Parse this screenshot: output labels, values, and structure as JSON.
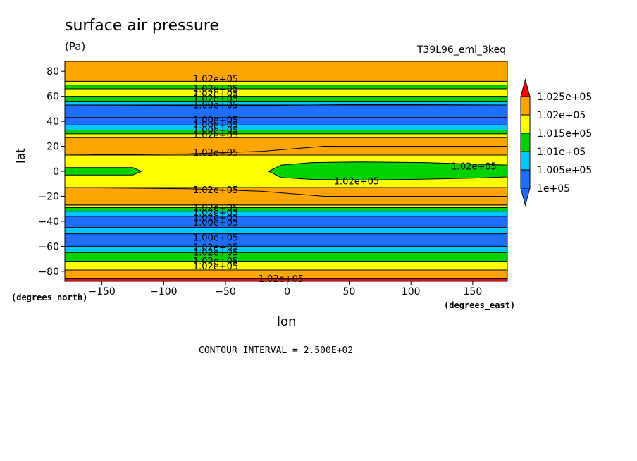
{
  "plot": {
    "title": "surface air pressure",
    "units": "(Pa)",
    "dataset": "T39L96_eml_3keq",
    "contour_interval": "CONTOUR INTERVAL = 2.500E+02"
  },
  "colors": {
    "lt_100000": "#1e6eff",
    "100000_100500": "#00c8ff",
    "100500_101000": "#00d200",
    "101000_101500": "#ffff00",
    "101500_102000": "#ffa500",
    "102000_102500": "#ff0000",
    "gt_102500": "#ff0000",
    "contour_line": "#000000"
  },
  "chart_data": {
    "type": "heatmap",
    "title": "surface air pressure",
    "units": "(Pa)",
    "xlabel": "lon",
    "ylabel": "lat",
    "x_units_label": "(degrees_east)",
    "y_units_label": "(degrees_north)",
    "xlim": [
      -180,
      178
    ],
    "ylim": [
      -88,
      88
    ],
    "x_ticks": [
      -150,
      -100,
      -50,
      0,
      50,
      100,
      150
    ],
    "y_ticks": [
      -80,
      -60,
      -40,
      -20,
      0,
      20,
      40,
      60,
      80
    ],
    "colorbar": {
      "labels": [
        "1.025e+05",
        "1.02e+05",
        "1.015e+05",
        "1.01e+05",
        "1.005e+05",
        "1e+05"
      ]
    },
    "bands": [
      {
        "lat_from": -88,
        "lat_to": -86,
        "class": "102000_102500"
      },
      {
        "lat_from": -86,
        "lat_to": -79,
        "class": "101500_102000"
      },
      {
        "lat_from": -79,
        "lat_to": -72,
        "class": "101000_101500"
      },
      {
        "lat_from": -72,
        "lat_to": -65,
        "class": "100500_101000"
      },
      {
        "lat_from": -65,
        "lat_to": -60,
        "class": "100000_100500"
      },
      {
        "lat_from": -60,
        "lat_to": -50,
        "class": "lt_100000"
      },
      {
        "lat_from": -50,
        "lat_to": -45,
        "class": "100000_100500"
      },
      {
        "lat_from": -45,
        "lat_to": -36,
        "class": "lt_100000"
      },
      {
        "lat_from": -36,
        "lat_to": -32,
        "class": "100000_100500"
      },
      {
        "lat_from": -32,
        "lat_to": -29,
        "class": "100500_101000"
      },
      {
        "lat_from": -29,
        "lat_to": -27,
        "class": "101000_101500"
      },
      {
        "lat_from": -27,
        "lat_to": -13,
        "class": "101500_102000"
      },
      {
        "lat_from": -13,
        "lat_to": 13,
        "class": "101000_101500"
      },
      {
        "lat_from": 13,
        "lat_to": 27,
        "class": "101500_102000"
      },
      {
        "lat_from": 27,
        "lat_to": 30,
        "class": "101000_101500"
      },
      {
        "lat_from": 30,
        "lat_to": 33,
        "class": "100500_101000"
      },
      {
        "lat_from": 33,
        "lat_to": 37,
        "class": "100000_100500"
      },
      {
        "lat_from": 37,
        "lat_to": 43,
        "class": "lt_100000"
      },
      {
        "lat_from": 43,
        "lat_to": 53,
        "class": "lt_100000"
      },
      {
        "lat_from": 53,
        "lat_to": 56,
        "class": "100000_100500"
      },
      {
        "lat_from": 56,
        "lat_to": 60,
        "class": "100500_101000"
      },
      {
        "lat_from": 60,
        "lat_to": 66,
        "class": "101000_101500"
      },
      {
        "lat_from": 66,
        "lat_to": 69,
        "class": "100500_101000"
      },
      {
        "lat_from": 69,
        "lat_to": 72,
        "class": "101000_101500"
      },
      {
        "lat_from": 72,
        "lat_to": 88,
        "class": "101500_102000"
      }
    ],
    "regions": [
      {
        "class": "100500_101000",
        "points": [
          [
            -180,
            3
          ],
          [
            -125,
            3
          ],
          [
            -118,
            0
          ],
          [
            -125,
            -3
          ],
          [
            -180,
            -3
          ]
        ]
      },
      {
        "class": "100500_101000",
        "points": [
          [
            -15,
            0
          ],
          [
            -5,
            5
          ],
          [
            20,
            7
          ],
          [
            60,
            7.5
          ],
          [
            110,
            7
          ],
          [
            160,
            5.5
          ],
          [
            178,
            5
          ],
          [
            178,
            -4.5
          ],
          [
            150,
            -5.5
          ],
          [
            100,
            -6.5
          ],
          [
            60,
            -7
          ],
          [
            20,
            -6.5
          ],
          [
            -5,
            -5
          ]
        ]
      },
      {
        "class": "101500_102000",
        "points": [
          [
            -180,
            13
          ],
          [
            -80,
            14
          ],
          [
            -20,
            16
          ],
          [
            30,
            20
          ],
          [
            178,
            20
          ],
          [
            178,
            27
          ],
          [
            -180,
            27
          ]
        ]
      },
      {
        "class": "101500_102000",
        "points": [
          [
            -180,
            -13
          ],
          [
            -80,
            -14
          ],
          [
            -20,
            -16
          ],
          [
            30,
            -20
          ],
          [
            178,
            -20
          ],
          [
            178,
            -27
          ],
          [
            -180,
            -27
          ]
        ]
      },
      {
        "class": "100000_100500",
        "points": [
          [
            -180,
            53
          ],
          [
            -30,
            52.5
          ],
          [
            60,
            53.5
          ],
          [
            178,
            53
          ],
          [
            178,
            56
          ],
          [
            -180,
            56
          ]
        ]
      }
    ],
    "contour_labels": [
      {
        "text": "1.02e+05",
        "lon": -58,
        "lat": 74
      },
      {
        "text": "1.02e+05",
        "lon": -58,
        "lat": 66
      },
      {
        "text": "1.02e+05",
        "lon": -58,
        "lat": 62
      },
      {
        "text": "1.02e+05",
        "lon": -58,
        "lat": 58
      },
      {
        "text": "1.00e+05",
        "lon": -58,
        "lat": 53
      },
      {
        "text": "1.00e+05",
        "lon": -58,
        "lat": 41
      },
      {
        "text": "1.00e+05",
        "lon": -58,
        "lat": 37
      },
      {
        "text": "1.00e+05",
        "lon": -58,
        "lat": 33
      },
      {
        "text": "1.02e+05",
        "lon": -58,
        "lat": 29
      },
      {
        "text": "1.02e+05",
        "lon": -58,
        "lat": 15
      },
      {
        "text": "1.02e+05",
        "lon": 56,
        "lat": -8
      },
      {
        "text": "1.02e+05",
        "lon": 151,
        "lat": 4
      },
      {
        "text": "1.02e+05",
        "lon": -58,
        "lat": -15
      },
      {
        "text": "1.02e+05",
        "lon": -58,
        "lat": -29
      },
      {
        "text": "1.02e+05",
        "lon": -58,
        "lat": -33
      },
      {
        "text": "1.02e+05",
        "lon": -58,
        "lat": -37
      },
      {
        "text": "1.00e+05",
        "lon": -58,
        "lat": -41
      },
      {
        "text": "1.00e+05",
        "lon": -58,
        "lat": -53
      },
      {
        "text": "1.02e+05",
        "lon": -58,
        "lat": -61
      },
      {
        "text": "1.02e+05",
        "lon": -58,
        "lat": -65
      },
      {
        "text": "1.02e+05",
        "lon": -58,
        "lat": -72
      },
      {
        "text": "1.02e+05",
        "lon": -58,
        "lat": -76
      },
      {
        "text": "1.02e+05",
        "lon": -5,
        "lat": -86
      }
    ],
    "grid": false,
    "legend_position": "right"
  }
}
